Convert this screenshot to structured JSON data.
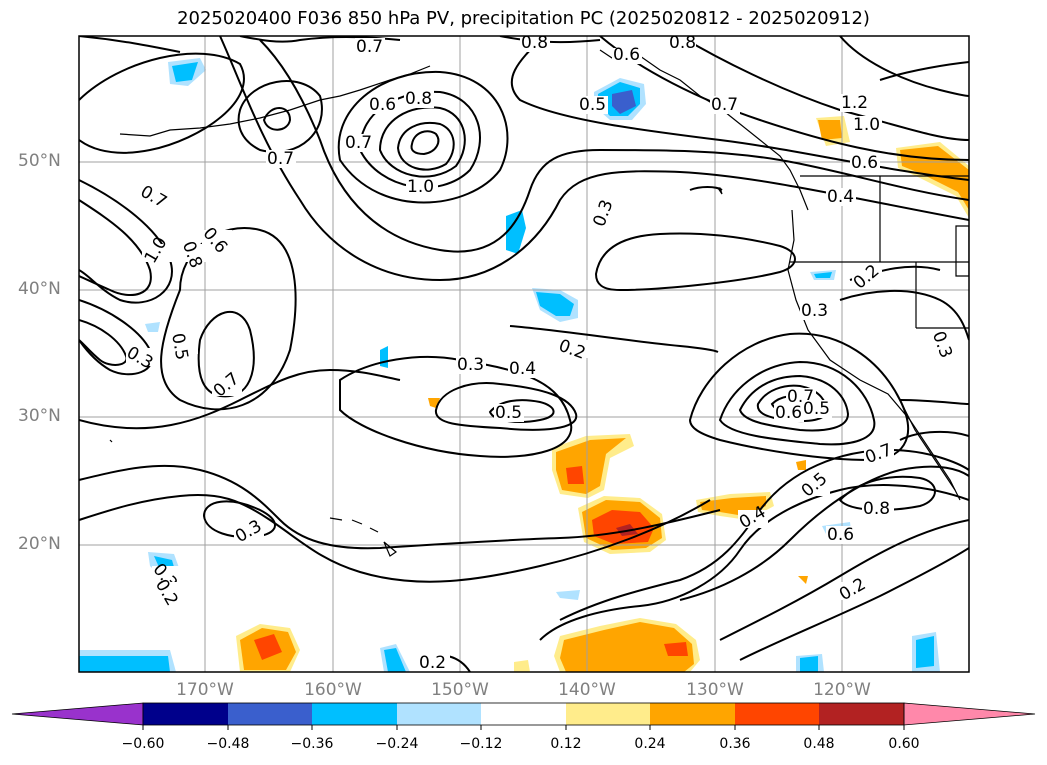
{
  "title": "2025020400 F036 850 hPa PV, precipitation PC (2025020812 - 2025020912)",
  "lat_labels": [
    "50°N",
    "40°N",
    "30°N",
    "20°N"
  ],
  "lon_labels": [
    "170°W",
    "160°W",
    "150°W",
    "140°W",
    "130°W",
    "120°W"
  ],
  "contour_labels": [
    "0.7",
    "0.8",
    "0.6",
    "0.8",
    "0.5",
    "0.7",
    "0.7",
    "0.6",
    "0.8",
    "0.7",
    "1.0",
    "1.2",
    "1.0",
    "0.6",
    "0.4",
    "0.3",
    "0.7",
    "1.0",
    "0.8",
    "0.6",
    "0.2",
    "0.3",
    "0.3",
    "0.5",
    "0.3",
    "0.7",
    "0.3",
    "0.4",
    "0.2",
    "0.5",
    "0.7",
    "0.6",
    "0.5",
    "0.3",
    "0.7",
    "0.5",
    "0.4",
    "0.8",
    "0.6",
    "0.3",
    "0.2",
    "0.2",
    "0.2"
  ],
  "colorbar": {
    "ticks": [
      "−0.60",
      "−0.48",
      "−0.36",
      "−0.24",
      "−0.12",
      "0.12",
      "0.24",
      "0.36",
      "0.48",
      "0.60"
    ],
    "colors": [
      "#9932cc",
      "#00008b",
      "#3a5fcd",
      "#00bfff",
      "#b0e2ff",
      "#ffffff",
      "#ffec8b",
      "#ffa500",
      "#ff4500",
      "#b22222",
      "#ff88aa"
    ]
  },
  "colors": {
    "light_blue": "#b0e2ff",
    "blue": "#00bfff",
    "mid_blue": "#3a5fcd",
    "yellow": "#ffec8b",
    "orange": "#ffa500",
    "red": "#ff4500",
    "dark_red": "#b22222",
    "grid": "#a0a0a0",
    "axis_label": "#808080"
  }
}
